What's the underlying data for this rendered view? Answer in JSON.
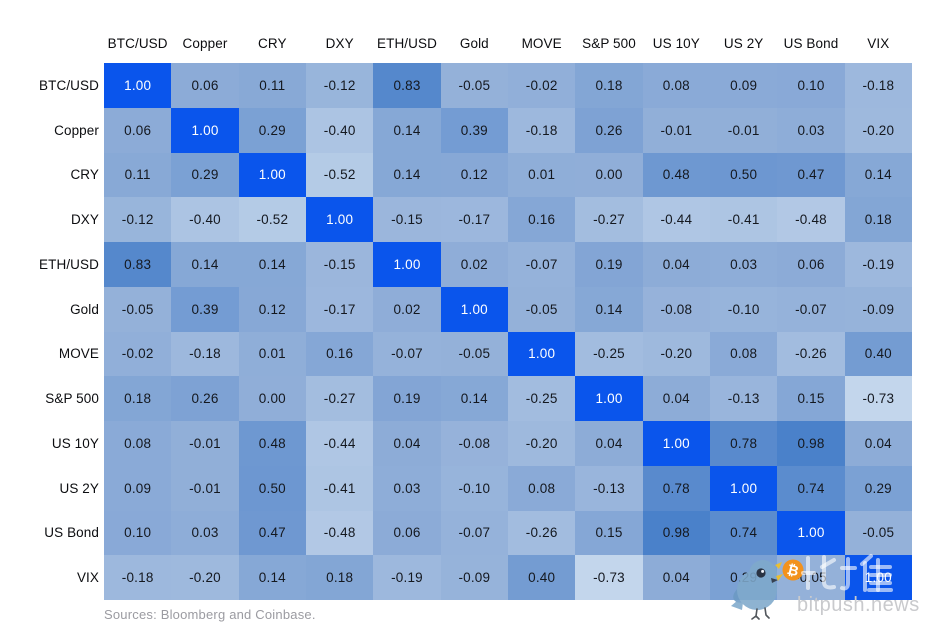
{
  "chart_data": {
    "type": "heatmap",
    "title": "",
    "categories": [
      "BTC/USD",
      "Copper",
      "CRY",
      "DXY",
      "ETH/USD",
      "Gold",
      "MOVE",
      "S&P 500",
      "US 10Y",
      "US 2Y",
      "US Bond",
      "VIX"
    ],
    "matrix": [
      [
        1.0,
        0.06,
        0.11,
        -0.12,
        0.83,
        -0.05,
        -0.02,
        0.18,
        0.08,
        0.09,
        0.1,
        -0.18
      ],
      [
        0.06,
        1.0,
        0.29,
        -0.4,
        0.14,
        0.39,
        -0.18,
        0.26,
        -0.01,
        -0.01,
        0.03,
        -0.2
      ],
      [
        0.11,
        0.29,
        1.0,
        -0.52,
        0.14,
        0.12,
        0.01,
        0.0,
        0.48,
        0.5,
        0.47,
        0.14
      ],
      [
        -0.12,
        -0.4,
        -0.52,
        1.0,
        -0.15,
        -0.17,
        0.16,
        -0.27,
        -0.44,
        -0.41,
        -0.48,
        0.18
      ],
      [
        0.83,
        0.14,
        0.14,
        -0.15,
        1.0,
        0.02,
        -0.07,
        0.19,
        0.04,
        0.03,
        0.06,
        -0.19
      ],
      [
        -0.05,
        0.39,
        0.12,
        -0.17,
        0.02,
        1.0,
        -0.05,
        0.14,
        -0.08,
        -0.1,
        -0.07,
        -0.09
      ],
      [
        -0.02,
        -0.18,
        0.01,
        0.16,
        -0.07,
        -0.05,
        1.0,
        -0.25,
        -0.2,
        0.08,
        -0.26,
        0.4
      ],
      [
        0.18,
        0.26,
        0.0,
        -0.27,
        0.19,
        0.14,
        -0.25,
        1.0,
        0.04,
        -0.13,
        0.15,
        -0.73
      ],
      [
        0.08,
        -0.01,
        0.48,
        -0.44,
        0.04,
        -0.08,
        -0.2,
        0.04,
        1.0,
        0.78,
        0.98,
        0.04
      ],
      [
        0.09,
        -0.01,
        0.5,
        -0.41,
        0.03,
        -0.1,
        0.08,
        -0.13,
        0.78,
        1.0,
        0.74,
        0.29
      ],
      [
        0.1,
        0.03,
        0.47,
        -0.48,
        0.06,
        -0.07,
        -0.26,
        0.15,
        0.98,
        0.74,
        1.0,
        -0.05
      ],
      [
        -0.18,
        -0.2,
        0.14,
        0.18,
        -0.19,
        -0.09,
        0.4,
        -0.73,
        0.04,
        0.29,
        -0.05,
        1.0
      ]
    ],
    "value_decimals": 2,
    "layout": {
      "legend": "none",
      "grid_lines": false,
      "row_labels": "left",
      "col_labels": "top"
    },
    "colors": {
      "diagonal": "#0A55EC",
      "diagonal_text": "#FFFFFF",
      "zero": "#90AED8",
      "negative_end": "#D6E5F3",
      "positive_end": "#4980CA",
      "cell_text": "#14181F",
      "label_text": "#0C0D10",
      "background": "#FFFFFF"
    }
  },
  "footer": {
    "sources": "Sources: Bloomberg and Coinbase."
  },
  "watermark": {
    "site": "bitpush.news",
    "cjk": "比推",
    "bitcoin_symbol": "₿"
  }
}
